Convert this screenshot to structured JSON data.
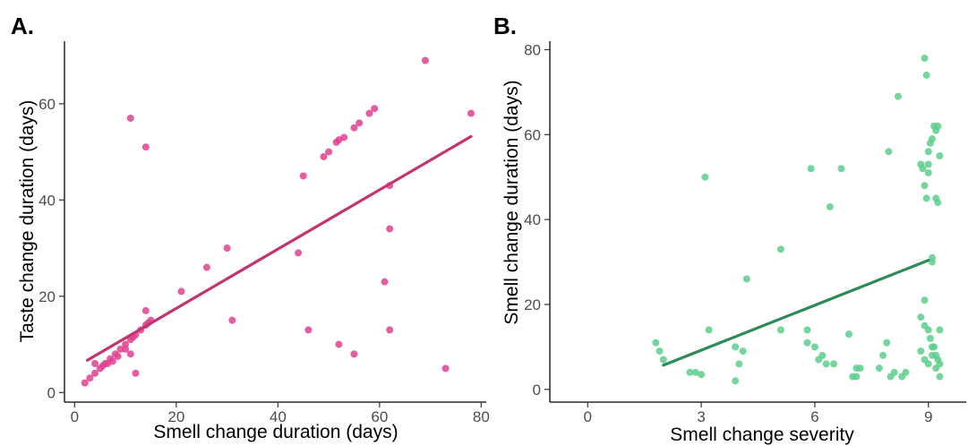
{
  "chart_data": [
    {
      "panel": "A.",
      "type": "scatter",
      "xlabel": "Smell change duration (days)",
      "ylabel": "Taste change duration (days)",
      "xlim": [
        -2,
        81
      ],
      "ylim": [
        -2,
        73
      ],
      "xticks": [
        0,
        20,
        40,
        60,
        80
      ],
      "yticks": [
        0,
        20,
        40,
        60
      ],
      "grid": false,
      "point_color": "#e0418f",
      "line_color": "#c2336f",
      "points": [
        [
          2,
          2
        ],
        [
          3,
          3
        ],
        [
          4,
          4
        ],
        [
          4,
          6
        ],
        [
          5,
          5
        ],
        [
          5.5,
          5.5
        ],
        [
          6,
          6
        ],
        [
          6.5,
          6
        ],
        [
          7,
          7
        ],
        [
          7.5,
          6.5
        ],
        [
          8,
          8
        ],
        [
          8.5,
          7.5
        ],
        [
          9,
          9
        ],
        [
          10,
          10
        ],
        [
          11,
          11
        ],
        [
          11.5,
          11.5
        ],
        [
          12,
          12
        ],
        [
          13,
          13
        ],
        [
          14,
          14
        ],
        [
          14.5,
          14.5
        ],
        [
          15,
          15
        ],
        [
          14,
          17
        ],
        [
          10,
          9
        ],
        [
          11,
          8
        ],
        [
          12,
          4
        ],
        [
          11,
          57
        ],
        [
          14,
          51
        ],
        [
          21,
          21
        ],
        [
          26,
          26
        ],
        [
          30,
          30
        ],
        [
          31,
          15
        ],
        [
          44,
          29
        ],
        [
          45,
          45
        ],
        [
          46,
          13
        ],
        [
          49,
          49
        ],
        [
          50,
          50
        ],
        [
          51.5,
          52
        ],
        [
          52,
          52.5
        ],
        [
          53,
          53
        ],
        [
          55,
          55
        ],
        [
          56,
          56
        ],
        [
          58,
          58
        ],
        [
          59,
          59
        ],
        [
          61,
          23
        ],
        [
          62,
          43
        ],
        [
          62,
          34
        ],
        [
          62,
          13
        ],
        [
          52,
          10
        ],
        [
          55,
          8
        ],
        [
          69,
          69
        ],
        [
          73,
          5
        ],
        [
          78,
          58
        ]
      ],
      "regression": {
        "x": [
          2.5,
          78
        ],
        "y": [
          6.7,
          53.2
        ]
      }
    },
    {
      "panel": "B.",
      "type": "scatter",
      "xlabel": "Smell change severity",
      "ylabel": "Smell change duration (days)",
      "xlim": [
        -1,
        10
      ],
      "ylim": [
        -3,
        82
      ],
      "xticks": [
        0,
        3,
        6,
        9
      ],
      "yticks": [
        0,
        20,
        40,
        60,
        80
      ],
      "grid": false,
      "point_color": "#5cce8c",
      "line_color": "#2e8b57",
      "points": [
        [
          1.8,
          11
        ],
        [
          1.9,
          9
        ],
        [
          2,
          7
        ],
        [
          2.7,
          4
        ],
        [
          2.85,
          4
        ],
        [
          3,
          3.5
        ],
        [
          3.2,
          14
        ],
        [
          3.1,
          50
        ],
        [
          3.9,
          2
        ],
        [
          3.9,
          10
        ],
        [
          4,
          6
        ],
        [
          4.1,
          9
        ],
        [
          4.2,
          26
        ],
        [
          5.1,
          33
        ],
        [
          5.1,
          14
        ],
        [
          5.9,
          52
        ],
        [
          5.8,
          14
        ],
        [
          5.8,
          11
        ],
        [
          6,
          10
        ],
        [
          6.1,
          7
        ],
        [
          6.2,
          8
        ],
        [
          6.3,
          6
        ],
        [
          6.4,
          43
        ],
        [
          6.5,
          6
        ],
        [
          6.7,
          52
        ],
        [
          6.9,
          13
        ],
        [
          7,
          3
        ],
        [
          7.1,
          3
        ],
        [
          7.1,
          5
        ],
        [
          7.2,
          5
        ],
        [
          7.7,
          5
        ],
        [
          7.8,
          8
        ],
        [
          7.9,
          11
        ],
        [
          7.95,
          56
        ],
        [
          8,
          3
        ],
        [
          8.1,
          4
        ],
        [
          8.2,
          69
        ],
        [
          8.3,
          3
        ],
        [
          8.4,
          4
        ],
        [
          8.9,
          78
        ],
        [
          8.95,
          74
        ],
        [
          8.8,
          53
        ],
        [
          8.85,
          52
        ],
        [
          8.9,
          48
        ],
        [
          8.95,
          45
        ],
        [
          9,
          53
        ],
        [
          9,
          51
        ],
        [
          9,
          56
        ],
        [
          9.05,
          58
        ],
        [
          9.1,
          59
        ],
        [
          9.15,
          62
        ],
        [
          9.2,
          61
        ],
        [
          9.25,
          62
        ],
        [
          9.3,
          55
        ],
        [
          9.2,
          45
        ],
        [
          9.25,
          44
        ],
        [
          9.1,
          31
        ],
        [
          9.1,
          30
        ],
        [
          8.9,
          21
        ],
        [
          8.8,
          17
        ],
        [
          8.9,
          15
        ],
        [
          9,
          14
        ],
        [
          9.05,
          12
        ],
        [
          9.1,
          10
        ],
        [
          9.15,
          10
        ],
        [
          9.2,
          8
        ],
        [
          9.25,
          7
        ],
        [
          9.3,
          6
        ],
        [
          8.8,
          9
        ],
        [
          8.9,
          7
        ],
        [
          9,
          6
        ],
        [
          9.1,
          8
        ],
        [
          9.2,
          5
        ],
        [
          9.3,
          14
        ],
        [
          9.3,
          3
        ]
      ],
      "regression": {
        "x": [
          2,
          9
        ],
        "y": [
          5.7,
          30.4
        ]
      }
    }
  ]
}
